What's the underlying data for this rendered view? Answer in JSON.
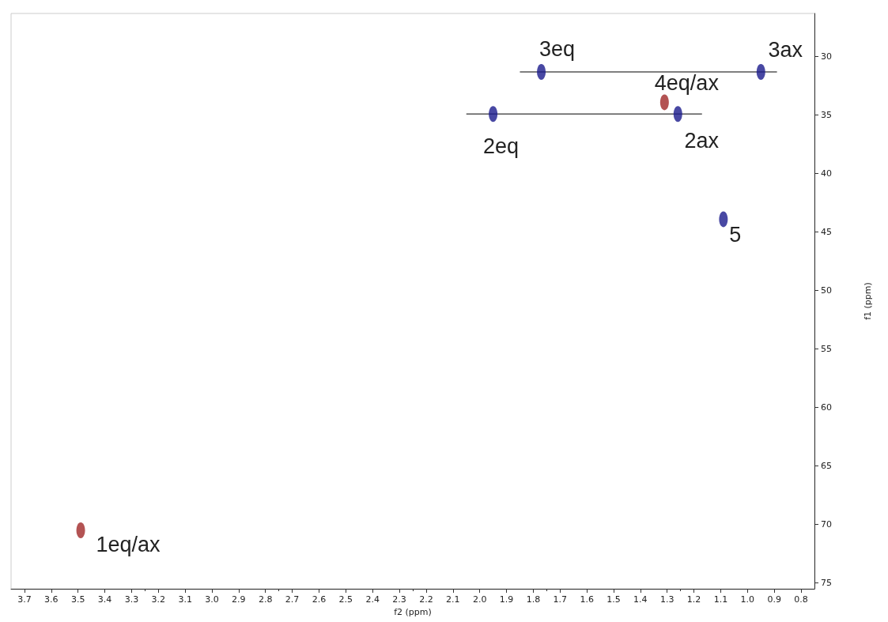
{
  "chart_data": {
    "type": "scatter",
    "xlabel": "f2 (ppm)",
    "ylabel": "f1 (ppm)",
    "xlim": [
      3.75,
      0.75
    ],
    "ylim": [
      75.5,
      26.3
    ],
    "xticks": [
      3.7,
      3.6,
      3.5,
      3.4,
      3.3,
      3.2,
      3.1,
      {
        "value": 3,
        "label": "3.0"
      },
      2.9,
      2.8,
      2.7,
      2.6,
      2.5,
      2.4,
      2.3,
      2.2,
      2.1,
      {
        "value": 2,
        "label": "2.0"
      },
      1.9,
      1.8,
      1.7,
      1.6,
      1.5,
      1.4,
      1.3,
      1.2,
      1.1,
      {
        "value": 1,
        "label": "1.0"
      },
      0.9,
      0.8
    ],
    "yticks": [
      30,
      35,
      40,
      45,
      50,
      55,
      60,
      65,
      70,
      75
    ],
    "grid": false,
    "marker": "circle",
    "series": [
      {
        "type": "line",
        "marker": "none",
        "color": "#555555",
        "x": [
          1.85,
          0.89
        ],
        "values": [
          31.3,
          31.3
        ]
      },
      {
        "type": "line",
        "marker": "none",
        "color": "#555555",
        "x": [
          2.05,
          1.17
        ],
        "values": [
          34.9,
          34.9
        ]
      },
      {
        "color": "#1a1a8c",
        "x": [
          1.77,
          0.95,
          1.95,
          1.26,
          1.09
        ],
        "values": [
          31.3,
          31.3,
          34.9,
          34.9,
          43.9
        ]
      },
      {
        "color": "#a02828",
        "x": [
          1.31,
          3.49
        ],
        "values": [
          33.9,
          70.5
        ]
      }
    ],
    "annotations": [
      {
        "text": "3eq",
        "x": 1.77,
        "y": 31.3
      },
      {
        "text": "3ax",
        "x": 0.95,
        "y": 31.3
      },
      {
        "text": "4eq/ax",
        "x": 1.31,
        "y": 33.9
      },
      {
        "text": "2eq",
        "x": 1.95,
        "y": 34.9
      },
      {
        "text": "2ax",
        "x": 1.26,
        "y": 34.9
      },
      {
        "text": "5",
        "x": 1.09,
        "y": 43.9
      },
      {
        "text": "1eq/ax",
        "x": 3.49,
        "y": 70.5
      }
    ]
  }
}
